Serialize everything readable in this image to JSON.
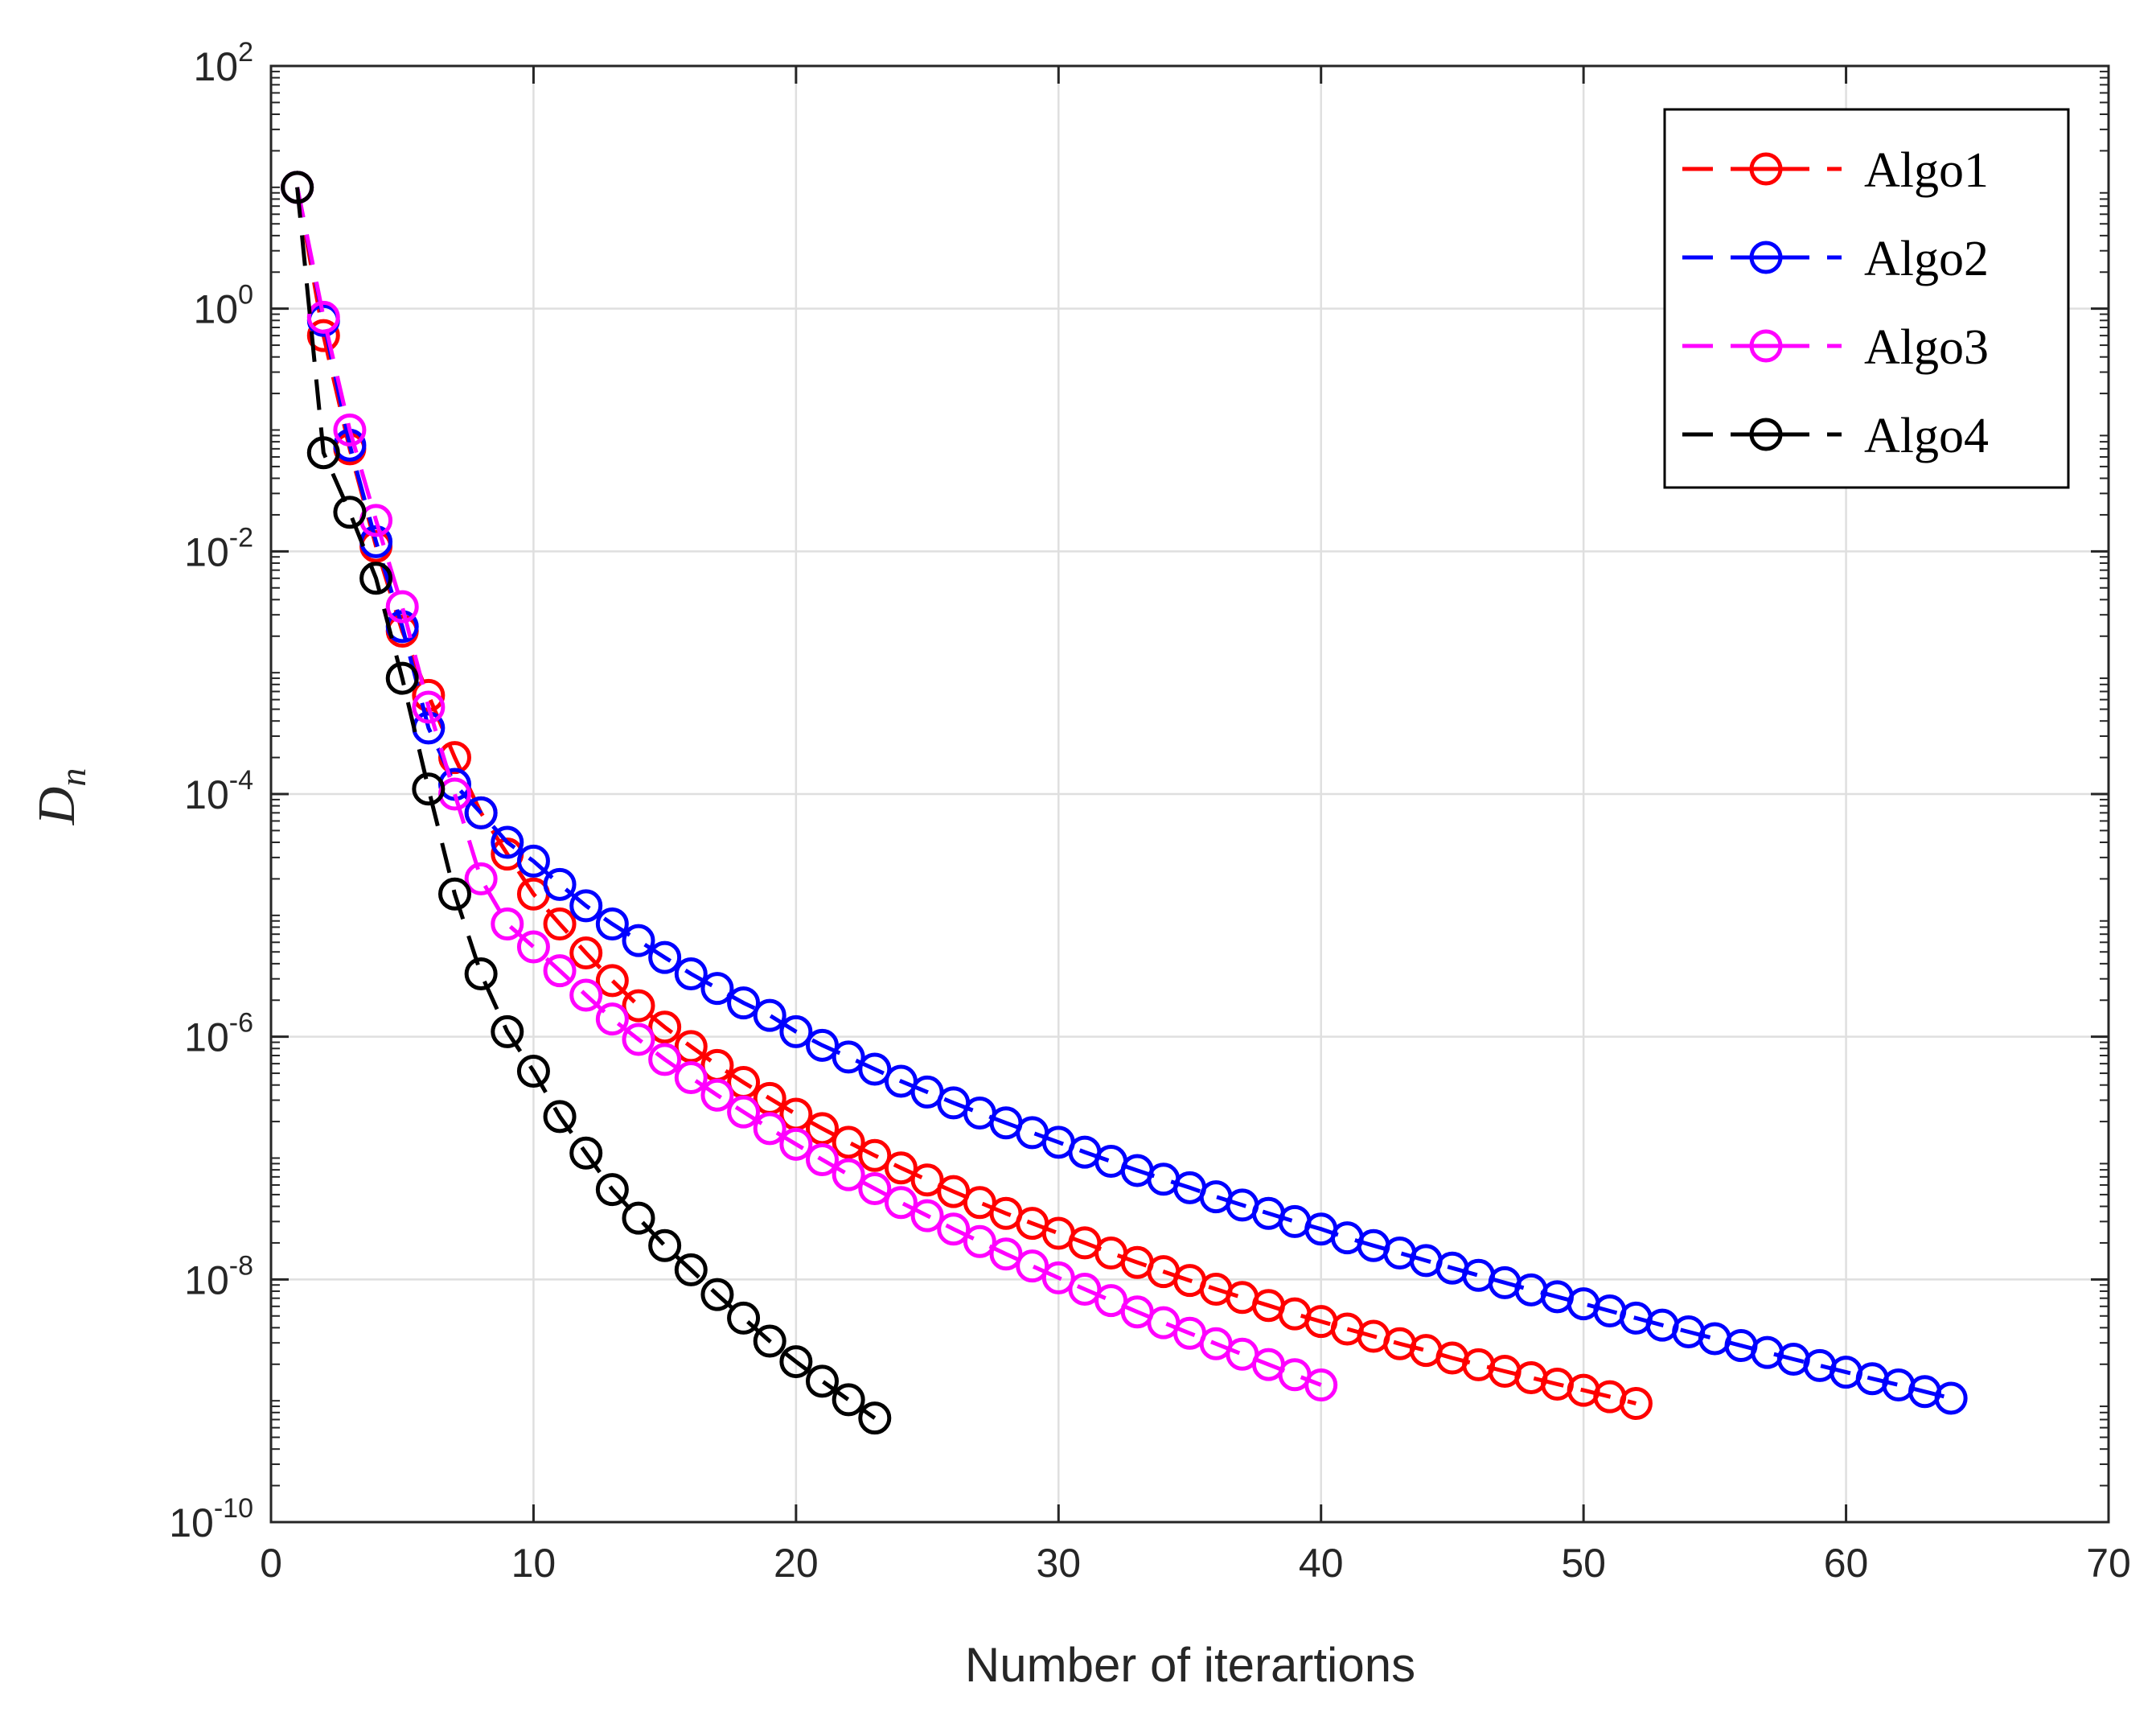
{
  "chart_data": {
    "type": "line",
    "title": "",
    "xlabel": "Number of iterartions",
    "ylabel": {
      "base": "D",
      "subscript": "n"
    },
    "xlim": [
      0,
      70
    ],
    "ylim": [
      1e-10,
      100
    ],
    "yscale": "log",
    "grid": true,
    "legend_position": "top-right",
    "xticks": [
      "0",
      "10",
      "20",
      "30",
      "40",
      "50",
      "60",
      "70"
    ],
    "yticks": [
      {
        "base": "10",
        "exp": "2"
      },
      {
        "base": "10",
        "exp": "0"
      },
      {
        "base": "10",
        "exp": "-2"
      },
      {
        "base": "10",
        "exp": "-4"
      },
      {
        "base": "10",
        "exp": "-6"
      },
      {
        "base": "10",
        "exp": "-8"
      },
      {
        "base": "10",
        "exp": "-10"
      }
    ],
    "series": [
      {
        "name": "Algo1",
        "color": "#ff0000",
        "x": [
          1,
          2,
          3,
          4,
          5,
          6,
          7,
          8,
          9,
          10,
          11,
          12,
          13,
          14,
          15,
          16,
          17,
          18,
          19,
          20,
          21,
          22,
          23,
          24,
          25,
          26,
          27,
          28,
          29,
          30,
          31,
          32,
          33,
          34,
          35,
          36,
          37,
          38,
          39,
          40,
          41,
          42,
          43,
          44,
          45,
          46,
          47,
          48,
          49,
          50,
          51,
          52
        ],
        "y": [
          10,
          0.6,
          0.07,
          0.011,
          0.0022,
          0.00065,
          0.0002,
          7e-05,
          3.2e-05,
          1.5e-05,
          8.5e-06,
          4.9e-06,
          2.9e-06,
          1.8e-06,
          1.2e-06,
          8.3e-07,
          5.8e-07,
          4.2e-07,
          3.1e-07,
          2.3e-07,
          1.75e-07,
          1.35e-07,
          1.05e-07,
          8.3e-08,
          6.6e-08,
          5.3e-08,
          4.3e-08,
          3.5e-08,
          2.9e-08,
          2.4e-08,
          2e-08,
          1.65e-08,
          1.38e-08,
          1.16e-08,
          9.8e-09,
          8.3e-09,
          7.1e-09,
          6.1e-09,
          5.2e-09,
          4.5e-09,
          3.9e-09,
          3.4e-09,
          2.95e-09,
          2.6e-09,
          2.25e-09,
          1.98e-09,
          1.75e-09,
          1.55e-09,
          1.37e-09,
          1.22e-09,
          1.08e-09,
          9.5e-10
        ]
      },
      {
        "name": "Algo2",
        "color": "#0000ff",
        "x": [
          1,
          2,
          3,
          4,
          5,
          6,
          7,
          8,
          9,
          10,
          11,
          12,
          13,
          14,
          15,
          16,
          17,
          18,
          19,
          20,
          21,
          22,
          23,
          24,
          25,
          26,
          27,
          28,
          29,
          30,
          31,
          32,
          33,
          34,
          35,
          36,
          37,
          38,
          39,
          40,
          41,
          42,
          43,
          44,
          45,
          46,
          47,
          48,
          49,
          50,
          51,
          52,
          53,
          54,
          55,
          56,
          57,
          58,
          59,
          60,
          61,
          62,
          63,
          64
        ],
        "y": [
          10,
          0.8,
          0.075,
          0.012,
          0.0024,
          0.00035,
          0.00012,
          7e-05,
          4e-05,
          2.8e-05,
          1.8e-05,
          1.2e-05,
          8.5e-06,
          6.2e-06,
          4.5e-06,
          3.3e-06,
          2.5e-06,
          1.9e-06,
          1.5e-06,
          1.1e-06,
          8.5e-07,
          6.8e-07,
          5.4e-07,
          4.3e-07,
          3.5e-07,
          2.85e-07,
          2.35e-07,
          1.95e-07,
          1.62e-07,
          1.35e-07,
          1.12e-07,
          9.4e-08,
          7.9e-08,
          6.7e-08,
          5.7e-08,
          4.8e-08,
          4.1e-08,
          3.5e-08,
          3e-08,
          2.6e-08,
          2.2e-08,
          1.9e-08,
          1.65e-08,
          1.43e-08,
          1.24e-08,
          1.08e-08,
          9.4e-09,
          8.2e-09,
          7.2e-09,
          6.3e-09,
          5.5e-09,
          4.8e-09,
          4.2e-09,
          3.7e-09,
          3.25e-09,
          2.85e-09,
          2.5e-09,
          2.2e-09,
          1.95e-09,
          1.72e-09,
          1.52e-09,
          1.35e-09,
          1.19e-09,
          1.05e-09
        ]
      },
      {
        "name": "Algo3",
        "color": "#ff00ff",
        "x": [
          1,
          2,
          3,
          4,
          5,
          6,
          7,
          8,
          9,
          10,
          11,
          12,
          13,
          14,
          15,
          16,
          17,
          18,
          19,
          20,
          21,
          22,
          23,
          24,
          25,
          26,
          27,
          28,
          29,
          30,
          31,
          32,
          33,
          34,
          35,
          36,
          37,
          38,
          39,
          40
        ],
        "y": [
          10,
          0.85,
          0.1,
          0.018,
          0.0035,
          0.00052,
          0.0001,
          2e-05,
          8.5e-06,
          5.5e-06,
          3.5e-06,
          2.2e-06,
          1.4e-06,
          9.5e-07,
          6.5e-07,
          4.6e-07,
          3.3e-07,
          2.4e-07,
          1.75e-07,
          1.3e-07,
          9.7e-08,
          7.3e-08,
          5.6e-08,
          4.3e-08,
          3.35e-08,
          2.6e-08,
          2.05e-08,
          1.62e-08,
          1.29e-08,
          1.03e-08,
          8.3e-09,
          6.7e-09,
          5.4e-09,
          4.4e-09,
          3.6e-09,
          2.95e-09,
          2.42e-09,
          1.99e-09,
          1.64e-09,
          1.35e-09
        ]
      },
      {
        "name": "Algo4",
        "color": "#000000",
        "x": [
          1,
          2,
          3,
          4,
          5,
          6,
          7,
          8,
          9,
          10,
          11,
          12,
          13,
          14,
          15,
          16,
          17,
          18,
          19,
          20,
          21,
          22,
          23
        ],
        "y": [
          10,
          0.065,
          0.021,
          0.006,
          0.0009,
          0.00011,
          1.5e-05,
          3.3e-06,
          1.1e-06,
          5.2e-07,
          2.2e-07,
          1.1e-07,
          5.5e-08,
          3.2e-08,
          1.9e-08,
          1.2e-08,
          7.5e-09,
          4.8e-09,
          3.1e-09,
          2.1e-09,
          1.45e-09,
          1.02e-09,
          7.2e-10
        ]
      }
    ]
  }
}
